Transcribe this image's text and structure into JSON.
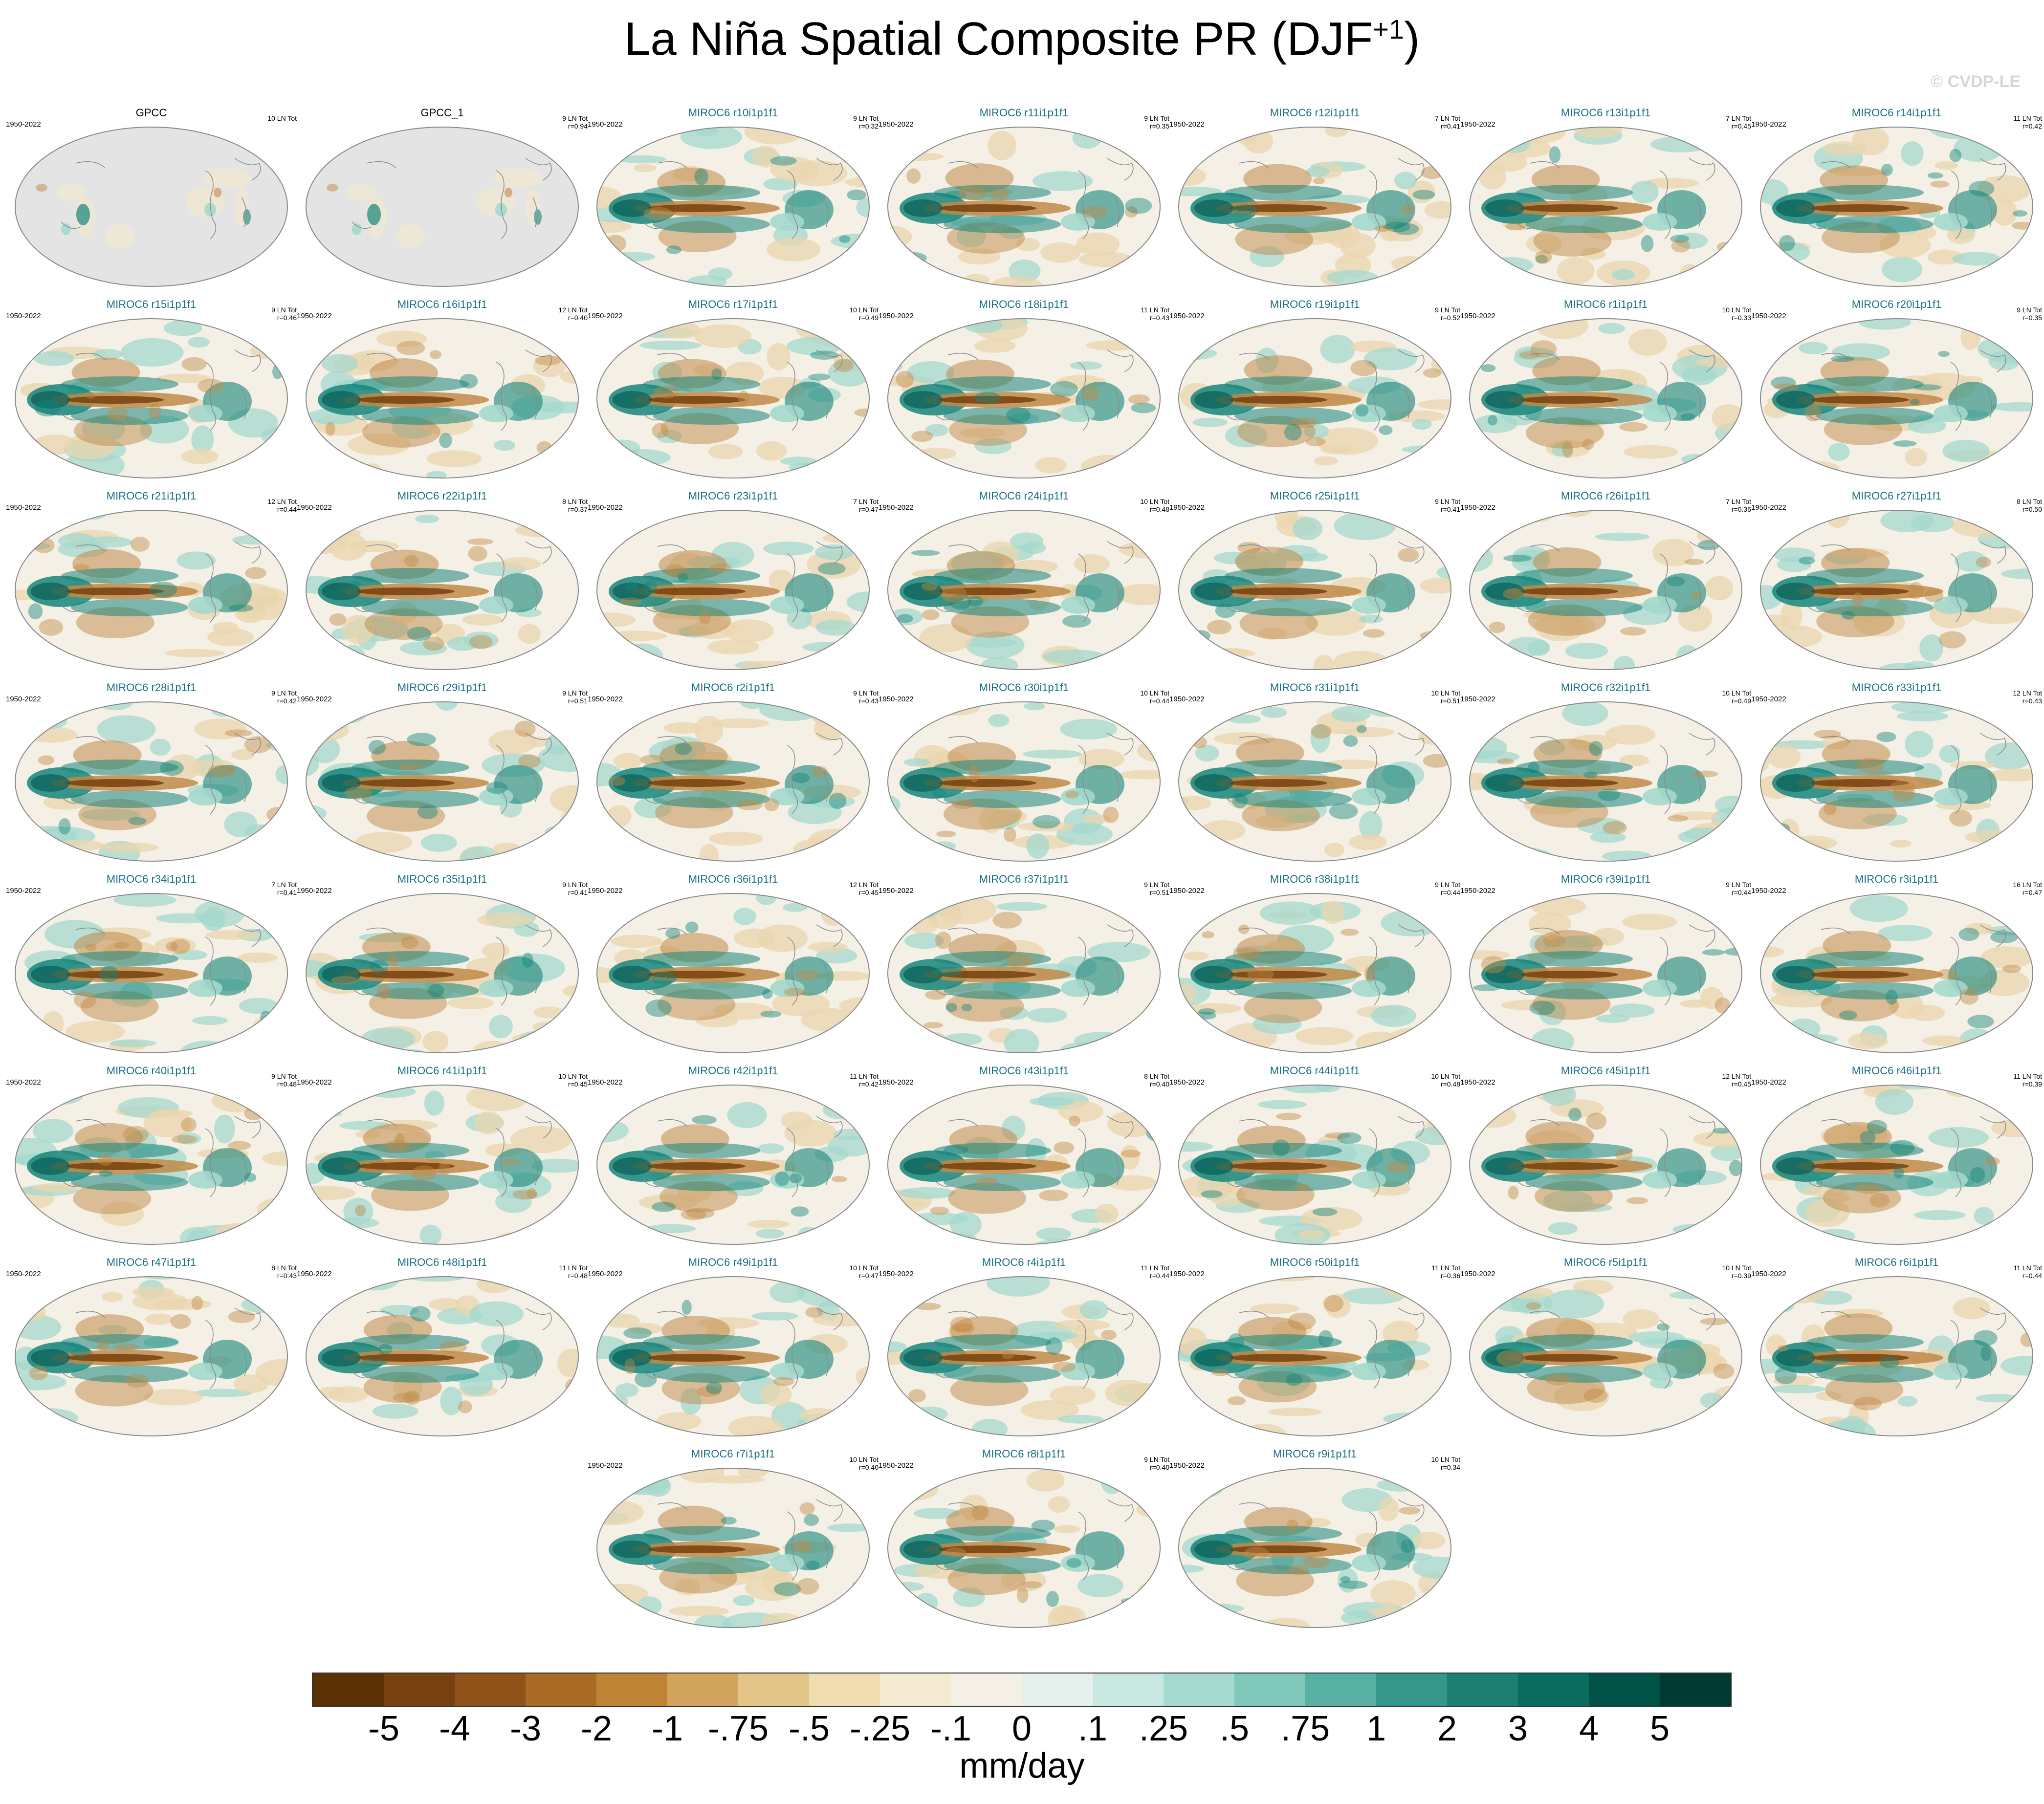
{
  "title": "La Niña Spatial Composite PR (DJF",
  "title_sup": "+1",
  "title_end": ")",
  "watermark": "© CVDP-LE",
  "panels": [
    {
      "name": "GPCC",
      "years": "1950-2022",
      "count": "10 LN Tot",
      "r": "",
      "obs": true
    },
    {
      "name": "GPCC_1",
      "years": "",
      "count": "9 LN Tot",
      "r": "r=0.94",
      "obs": true
    },
    {
      "name": "MIROC6 r10i1p1f1",
      "years": "1950-2022",
      "count": "9 LN Tot",
      "r": "r=0.32"
    },
    {
      "name": "MIROC6 r11i1p1f1",
      "years": "1950-2022",
      "count": "9 LN Tot",
      "r": "r=0.35"
    },
    {
      "name": "MIROC6 r12i1p1f1",
      "years": "1950-2022",
      "count": "7 LN Tot",
      "r": "r=0.41"
    },
    {
      "name": "MIROC6 r13i1p1f1",
      "years": "1950-2022",
      "count": "7 LN Tot",
      "r": "r=0.45"
    },
    {
      "name": "MIROC6 r14i1p1f1",
      "years": "1950-2022",
      "count": "11 LN Tot",
      "r": "r=0.42"
    },
    {
      "name": "MIROC6 r15i1p1f1",
      "years": "1950-2022",
      "count": "9 LN Tot",
      "r": "r=0.46"
    },
    {
      "name": "MIROC6 r16i1p1f1",
      "years": "1950-2022",
      "count": "12 LN Tot",
      "r": "r=0.40"
    },
    {
      "name": "MIROC6 r17i1p1f1",
      "years": "1950-2022",
      "count": "10 LN Tot",
      "r": "r=0.49"
    },
    {
      "name": "MIROC6 r18i1p1f1",
      "years": "1950-2022",
      "count": "11 LN Tot",
      "r": "r=0.43"
    },
    {
      "name": "MIROC6 r19i1p1f1",
      "years": "1950-2022",
      "count": "9 LN Tot",
      "r": "r=0.52"
    },
    {
      "name": "MIROC6 r1i1p1f1",
      "years": "1950-2022",
      "count": "10 LN Tot",
      "r": "r=0.33"
    },
    {
      "name": "MIROC6 r20i1p1f1",
      "years": "1950-2022",
      "count": "9 LN Tot",
      "r": "r=0.35"
    },
    {
      "name": "MIROC6 r21i1p1f1",
      "years": "1950-2022",
      "count": "12 LN Tot",
      "r": "r=0.44"
    },
    {
      "name": "MIROC6 r22i1p1f1",
      "years": "1950-2022",
      "count": "8 LN Tot",
      "r": "r=0.37"
    },
    {
      "name": "MIROC6 r23i1p1f1",
      "years": "1950-2022",
      "count": "7 LN Tot",
      "r": "r=0.47"
    },
    {
      "name": "MIROC6 r24i1p1f1",
      "years": "1950-2022",
      "count": "10 LN Tot",
      "r": "r=0.48"
    },
    {
      "name": "MIROC6 r25i1p1f1",
      "years": "1950-2022",
      "count": "9 LN Tot",
      "r": "r=0.41"
    },
    {
      "name": "MIROC6 r26i1p1f1",
      "years": "1950-2022",
      "count": "7 LN Tot",
      "r": "r=0.36"
    },
    {
      "name": "MIROC6 r27i1p1f1",
      "years": "1950-2022",
      "count": "8 LN Tot",
      "r": "r=0.50"
    },
    {
      "name": "MIROC6 r28i1p1f1",
      "years": "1950-2022",
      "count": "9 LN Tot",
      "r": "r=0.42"
    },
    {
      "name": "MIROC6 r29i1p1f1",
      "years": "1950-2022",
      "count": "9 LN Tot",
      "r": "r=0.51"
    },
    {
      "name": "MIROC6 r2i1p1f1",
      "years": "1950-2022",
      "count": "9 LN Tot",
      "r": "r=0.43"
    },
    {
      "name": "MIROC6 r30i1p1f1",
      "years": "1950-2022",
      "count": "10 LN Tot",
      "r": "r=0.44"
    },
    {
      "name": "MIROC6 r31i1p1f1",
      "years": "1950-2022",
      "count": "10 LN Tot",
      "r": "r=0.51"
    },
    {
      "name": "MIROC6 r32i1p1f1",
      "years": "1950-2022",
      "count": "10 LN Tot",
      "r": "r=0.49"
    },
    {
      "name": "MIROC6 r33i1p1f1",
      "years": "1950-2022",
      "count": "12 LN Tot",
      "r": "r=0.43"
    },
    {
      "name": "MIROC6 r34i1p1f1",
      "years": "1950-2022",
      "count": "7 LN Tot",
      "r": "r=0.41"
    },
    {
      "name": "MIROC6 r35i1p1f1",
      "years": "1950-2022",
      "count": "9 LN Tot",
      "r": "r=0.41"
    },
    {
      "name": "MIROC6 r36i1p1f1",
      "years": "1950-2022",
      "count": "12 LN Tot",
      "r": "r=0.45"
    },
    {
      "name": "MIROC6 r37i1p1f1",
      "years": "1950-2022",
      "count": "9 LN Tot",
      "r": "r=0.51"
    },
    {
      "name": "MIROC6 r38i1p1f1",
      "years": "1950-2022",
      "count": "9 LN Tot",
      "r": "r=0.44"
    },
    {
      "name": "MIROC6 r39i1p1f1",
      "years": "1950-2022",
      "count": "9 LN Tot",
      "r": "r=0.44"
    },
    {
      "name": "MIROC6 r3i1p1f1",
      "years": "1950-2022",
      "count": "16 LN Tot",
      "r": "r=0.47"
    },
    {
      "name": "MIROC6 r40i1p1f1",
      "years": "1950-2022",
      "count": "9 LN Tot",
      "r": "r=0.48"
    },
    {
      "name": "MIROC6 r41i1p1f1",
      "years": "1950-2022",
      "count": "10 LN Tot",
      "r": "r=0.45"
    },
    {
      "name": "MIROC6 r42i1p1f1",
      "years": "1950-2022",
      "count": "11 LN Tot",
      "r": "r=0.42"
    },
    {
      "name": "MIROC6 r43i1p1f1",
      "years": "1950-2022",
      "count": "8 LN Tot",
      "r": "r=0.40"
    },
    {
      "name": "MIROC6 r44i1p1f1",
      "years": "1950-2022",
      "count": "10 LN Tot",
      "r": "r=0.48"
    },
    {
      "name": "MIROC6 r45i1p1f1",
      "years": "1950-2022",
      "count": "12 LN Tot",
      "r": "r=0.45"
    },
    {
      "name": "MIROC6 r46i1p1f1",
      "years": "1950-2022",
      "count": "11 LN Tot",
      "r": "r=0.39"
    },
    {
      "name": "MIROC6 r47i1p1f1",
      "years": "1950-2022",
      "count": "8 LN Tot",
      "r": "r=0.43"
    },
    {
      "name": "MIROC6 r48i1p1f1",
      "years": "1950-2022",
      "count": "11 LN Tot",
      "r": "r=0.48"
    },
    {
      "name": "MIROC6 r49i1p1f1",
      "years": "1950-2022",
      "count": "10 LN Tot",
      "r": "r=0.47"
    },
    {
      "name": "MIROC6 r4i1p1f1",
      "years": "1950-2022",
      "count": "11 LN Tot",
      "r": "r=0.44"
    },
    {
      "name": "MIROC6 r50i1p1f1",
      "years": "1950-2022",
      "count": "11 LN Tot",
      "r": "r=0.36"
    },
    {
      "name": "MIROC6 r5i1p1f1",
      "years": "1950-2022",
      "count": "10 LN Tot",
      "r": "r=0.39"
    },
    {
      "name": "MIROC6 r6i1p1f1",
      "years": "1950-2022",
      "count": "11 LN Tot",
      "r": "r=0.44"
    },
    {
      "name": "MIROC6 r7i1p1f1",
      "years": "1950-2022",
      "count": "10 LN Tot",
      "r": "r=0.40"
    },
    {
      "name": "MIROC6 r8i1p1f1",
      "years": "1950-2022",
      "count": "9 LN Tot",
      "r": "r=0.40"
    },
    {
      "name": "MIROC6 r9i1p1f1",
      "years": "1950-2022",
      "count": "10 LN Tot",
      "r": "r=0.34"
    }
  ],
  "colorbar": {
    "colors": [
      "#5a3005",
      "#774010",
      "#8f5319",
      "#a86a24",
      "#c08437",
      "#d1a55d",
      "#e3c587",
      "#efdcb0",
      "#f4ead2",
      "#f5f0e6",
      "#e6f1ee",
      "#c9e7e1",
      "#a6dad0",
      "#7fc8ba",
      "#57b0a1",
      "#369689",
      "#1d7e72",
      "#0a6b5f",
      "#005146",
      "#003a31"
    ],
    "ticks": [
      "-5",
      "-4",
      "-3",
      "-2",
      "-1",
      "-.75",
      "-.5",
      "-.25",
      "-.1",
      "0",
      ".1",
      ".25",
      ".5",
      ".75",
      "1",
      "2",
      "3",
      "4",
      "5"
    ],
    "units": "mm/day"
  }
}
